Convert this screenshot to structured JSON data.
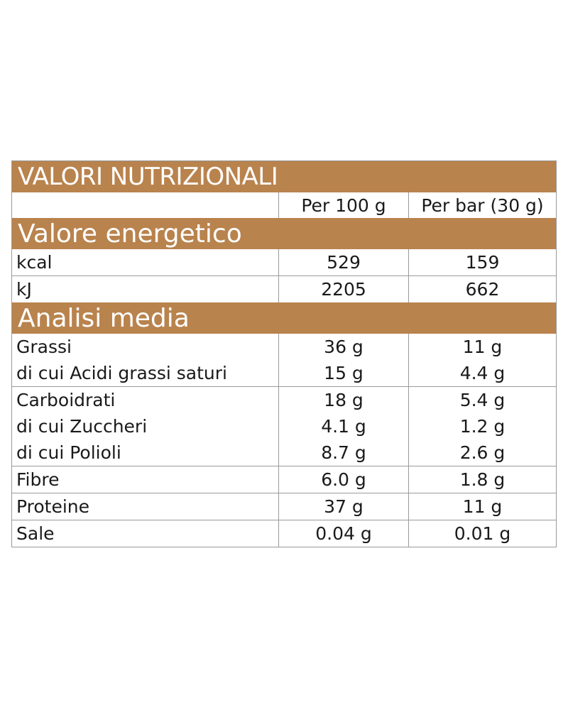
{
  "table": {
    "title": "VALORI NUTRIZIONALI",
    "columns": {
      "per100": "Per 100 g",
      "perbar": "Per bar (30 g)"
    },
    "sections": {
      "energy": {
        "title": "Valore energetico",
        "rows": [
          {
            "label": "kcal",
            "v1": "529",
            "v2": "159"
          },
          {
            "label": "kJ",
            "v1": "2205",
            "v2": "662"
          }
        ]
      },
      "analysis": {
        "title": "Analisi media",
        "groups": [
          {
            "lines": [
              {
                "label": "Grassi",
                "v1": "36 g",
                "v2": "11 g"
              },
              {
                "label": "di cui Acidi grassi saturi",
                "v1": "15 g",
                "v2": "4.4 g"
              }
            ]
          },
          {
            "lines": [
              {
                "label": "Carboidrati",
                "v1": "18 g",
                "v2": "5.4 g"
              },
              {
                "label": "di cui Zuccheri",
                "v1": "4.1 g",
                "v2": "1.2 g"
              },
              {
                "label": "di cui Polioli",
                "v1": "8.7 g",
                "v2": "2.6 g"
              }
            ]
          },
          {
            "lines": [
              {
                "label": "Fibre",
                "v1": "6.0 g",
                "v2": "1.8 g"
              }
            ]
          },
          {
            "lines": [
              {
                "label": "Proteine",
                "v1": "37 g",
                "v2": "11 g"
              }
            ]
          },
          {
            "lines": [
              {
                "label": "Sale",
                "v1": "0.04 g",
                "v2": "0.01 g"
              }
            ]
          }
        ]
      }
    }
  }
}
